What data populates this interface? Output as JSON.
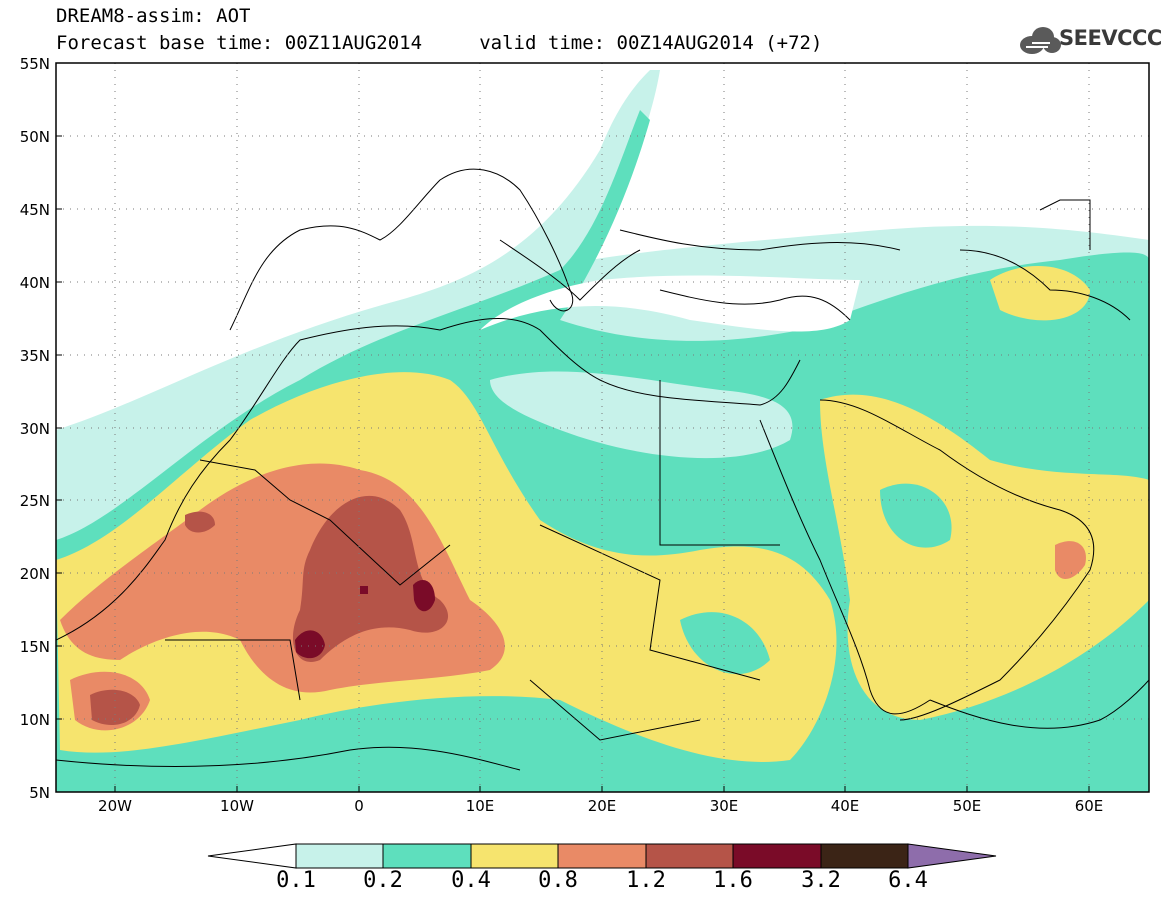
{
  "title": {
    "line1": "DREAM8-assim: AOT",
    "line2": "Forecast base time: 00Z11AUG2014     valid time: 00Z14AUG2014 (+72)"
  },
  "logo": {
    "text": "SEEVCCC",
    "icon": "cloud-icon"
  },
  "map": {
    "lon_range": [
      -25,
      65
    ],
    "lat_range": [
      5,
      55
    ],
    "y_labels": [
      "55N",
      "50N",
      "45N",
      "40N",
      "35N",
      "30N",
      "25N",
      "20N",
      "15N",
      "10N",
      "5N"
    ],
    "x_labels": [
      "20W",
      "10W",
      "0",
      "10E",
      "20E",
      "30E",
      "40E",
      "50E",
      "60E"
    ],
    "grid": "dotted"
  },
  "colorbar": {
    "labels": [
      "0.1",
      "0.2",
      "0.4",
      "0.8",
      "1.2",
      "1.6",
      "3.2",
      "6.4"
    ],
    "colors": [
      "#ffffff",
      "#c7f2ea",
      "#5edfbd",
      "#f6e46e",
      "#e98a66",
      "#b55448",
      "#7a0b28",
      "#3b2416",
      "#8e6dab"
    ]
  }
}
